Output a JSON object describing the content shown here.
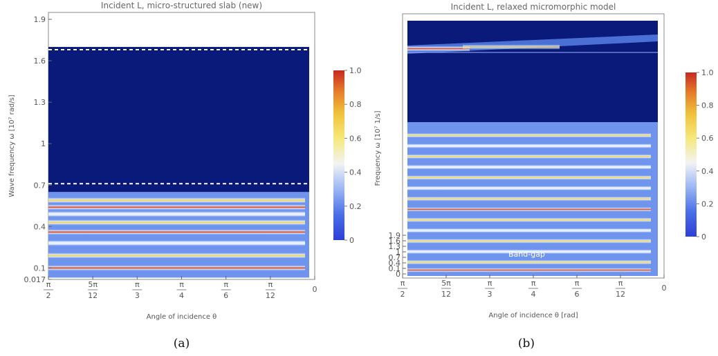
{
  "chart_data": [
    {
      "type": "heatmap",
      "panel_label": "(a)",
      "title": "Incident L, micro-structured slab (new)",
      "xlabel": "Angle of incidence θ",
      "ylabel": "Wave frequency  ω [10⁷ rad/s]",
      "x_ticks": [
        "π/2",
        "5π/12",
        "π/3",
        "π/4",
        "π/6",
        "π/12",
        "0"
      ],
      "x_tick_values": [
        1.5708,
        1.309,
        1.0472,
        0.7854,
        0.5236,
        0.2618,
        0
      ],
      "y_ticks": [
        "0.017",
        "0.1",
        "0.4",
        "0.7",
        "1",
        "1.3",
        "1.6",
        "1.9"
      ],
      "y_tick_values": [
        0.017,
        0.1,
        0.4,
        0.7,
        1.0,
        1.3,
        1.6,
        1.9
      ],
      "xlim": [
        1.5708,
        0
      ],
      "ylim": [
        0.017,
        1.95
      ],
      "colorbar": {
        "min": 0,
        "max": 1,
        "ticks": [
          "0",
          "0.2",
          "0.4",
          "0.6",
          "0.8",
          "1.0"
        ]
      },
      "dashed_lines_y": [
        0.71,
        1.68
      ],
      "bright_bands_y": [
        0.1,
        0.19,
        0.28,
        0.36,
        0.43,
        0.49,
        0.54,
        0.59
      ],
      "band_gap": [
        0.65,
        1.68
      ]
    },
    {
      "type": "heatmap",
      "panel_label": "(b)",
      "title": "Incident L, relaxed micromorphic model",
      "xlabel": "Angle of incidence θ [rad]",
      "ylabel": "Frequency ω [10⁷ 1/s]",
      "annotation": "Band-gap",
      "x_ticks": [
        "π/2",
        "5π/12",
        "π/3",
        "π/4",
        "π/6",
        "π/12",
        "0"
      ],
      "x_tick_values": [
        1.5708,
        1.309,
        1.0472,
        0.7854,
        0.5236,
        0.2618,
        0
      ],
      "y_ticks": [
        "0",
        "0.1",
        "0.4",
        "0.7",
        "1",
        "1.3",
        "1.6",
        "1.9"
      ],
      "y_tick_values": [
        0,
        0.1,
        0.4,
        0.7,
        1.0,
        1.3,
        1.6,
        1.9
      ],
      "colorbar": {
        "min": 0,
        "max": 1,
        "ticks": [
          "0",
          "0.2",
          "0.4",
          "0.6",
          "0.8",
          "1.0"
        ]
      },
      "bright_bands_frac": [
        0.03,
        0.06,
        0.1,
        0.14,
        0.18,
        0.22,
        0.26,
        0.3,
        0.34,
        0.38,
        0.42,
        0.46,
        0.5,
        0.54
      ],
      "band_gap_frac": [
        0.59,
        0.9
      ]
    }
  ]
}
